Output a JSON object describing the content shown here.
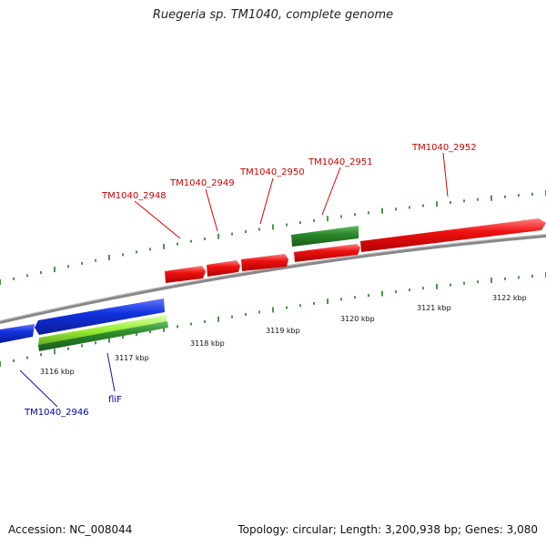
{
  "title": "Ruegeria sp. TM1040, complete genome",
  "footer": {
    "accession": "Accession: NC_008044",
    "stats": "Topology: circular; Length: 3,200,938 bp; Genes: 3,080"
  },
  "colors": {
    "forward_gene": "#ee1111",
    "reverse_gene": "#1133dd",
    "forward_cds": "#2b8a2b",
    "reverse_cds": "#2b8a2b",
    "reverse_highlight": "#99ee33",
    "backbone": "#888888",
    "forward_label": "#cc0000",
    "reverse_label": "#0000aa",
    "tick": "#1f7a1f"
  },
  "axis_labels": [
    "3116 kbp",
    "3117 kbp",
    "3118 kbp",
    "3119 kbp",
    "3120 kbp",
    "3121 kbp",
    "3122 kbp"
  ],
  "forward_genes": [
    {
      "name": "TM1040_2948"
    },
    {
      "name": "TM1040_2949"
    },
    {
      "name": "TM1040_2950"
    },
    {
      "name": "TM1040_2951"
    },
    {
      "name": "TM1040_2952"
    }
  ],
  "reverse_genes": [
    {
      "name": "TM1040_2946"
    },
    {
      "name": "fliF"
    }
  ]
}
